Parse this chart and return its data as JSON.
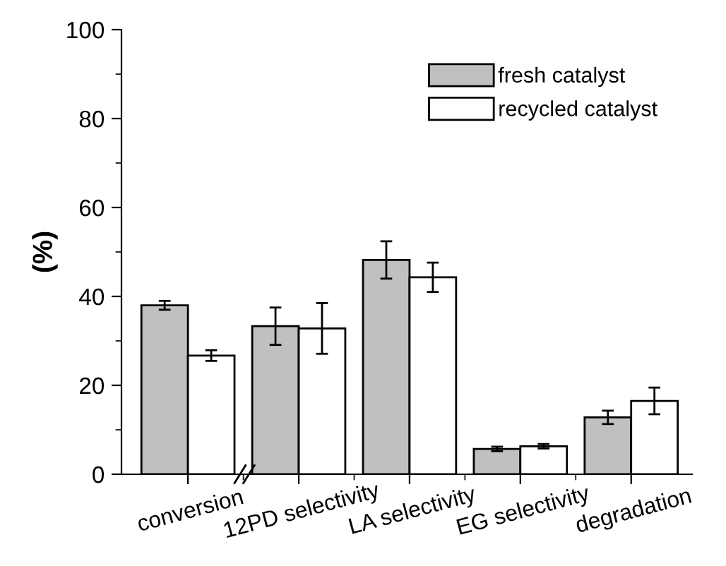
{
  "chart_data": {
    "type": "bar",
    "ylabel": "(%)",
    "categories": [
      "conversion",
      "12PD selectivity",
      "LA selectivity",
      "EG selectivity",
      "degradation"
    ],
    "series": [
      {
        "name": "fresh catalyst",
        "color": "#c0c0c0",
        "values": [
          38.0,
          33.3,
          48.2,
          5.7,
          12.8
        ],
        "errors": [
          1.0,
          4.2,
          4.2,
          0.5,
          1.5
        ]
      },
      {
        "name": "recycled catalyst",
        "color": "#ffffff",
        "values": [
          26.7,
          32.8,
          44.3,
          6.3,
          16.5
        ],
        "errors": [
          1.2,
          5.7,
          3.3,
          0.5,
          3.0
        ]
      }
    ],
    "ylim": [
      0,
      100
    ],
    "yticks": [
      0,
      20,
      40,
      60,
      80,
      100
    ],
    "grid": false,
    "legend": "top right"
  }
}
